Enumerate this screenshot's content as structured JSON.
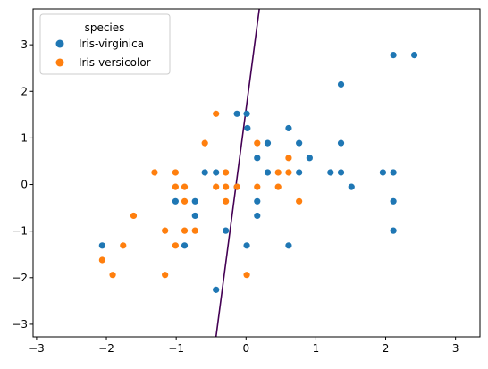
{
  "chart_data": {
    "type": "scatter",
    "legend": {
      "title": "species",
      "placement": "top-left",
      "entries": [
        {
          "name": "Iris-virginica",
          "color": "#1f77b4"
        },
        {
          "name": "Iris-versicolor",
          "color": "#ff7f0e"
        }
      ]
    },
    "xlim": [
      -3.05,
      3.35
    ],
    "ylim": [
      -3.27,
      3.77
    ],
    "x_ticks": [
      -3,
      -2,
      -1,
      0,
      1,
      2,
      3
    ],
    "y_ticks": [
      -3,
      -2,
      -1,
      0,
      1,
      2,
      3
    ],
    "grid": false,
    "series": [
      {
        "name": "Iris-virginica",
        "color": "#1f77b4",
        "points": [
          [
            -2.06,
            -1.31
          ],
          [
            -0.88,
            -1.31
          ],
          [
            -0.73,
            -0.67
          ],
          [
            -0.73,
            -0.36
          ],
          [
            -1.01,
            -0.36
          ],
          [
            -0.59,
            0.26
          ],
          [
            -0.43,
            0.26
          ],
          [
            -0.13,
            1.52
          ],
          [
            0.01,
            1.52
          ],
          [
            0.02,
            1.21
          ],
          [
            0.31,
            0.89
          ],
          [
            0.61,
            1.21
          ],
          [
            0.76,
            0.89
          ],
          [
            0.16,
            0.57
          ],
          [
            0.31,
            0.26
          ],
          [
            0.76,
            0.26
          ],
          [
            0.91,
            0.57
          ],
          [
            1.21,
            0.26
          ],
          [
            1.36,
            0.26
          ],
          [
            1.36,
            0.89
          ],
          [
            1.36,
            2.15
          ],
          [
            1.51,
            -0.05
          ],
          [
            1.96,
            0.26
          ],
          [
            2.11,
            0.26
          ],
          [
            2.11,
            -0.36
          ],
          [
            2.11,
            -0.99
          ],
          [
            2.11,
            2.78
          ],
          [
            2.41,
            2.78
          ],
          [
            0.61,
            -1.31
          ],
          [
            0.01,
            -1.31
          ],
          [
            -0.29,
            -0.99
          ],
          [
            -0.43,
            -2.26
          ],
          [
            0.16,
            -0.36
          ],
          [
            0.16,
            -0.67
          ],
          [
            -0.13,
            -0.05
          ]
        ]
      },
      {
        "name": "Iris-versicolor",
        "color": "#ff7f0e",
        "points": [
          [
            -2.06,
            -1.62
          ],
          [
            -1.91,
            -1.94
          ],
          [
            -1.76,
            -1.31
          ],
          [
            -1.61,
            -0.67
          ],
          [
            -1.31,
            0.26
          ],
          [
            -1.16,
            -0.99
          ],
          [
            -1.16,
            -1.94
          ],
          [
            -1.01,
            0.26
          ],
          [
            -1.01,
            -0.05
          ],
          [
            -1.01,
            -1.31
          ],
          [
            -0.88,
            -0.05
          ],
          [
            -0.88,
            -0.36
          ],
          [
            -0.88,
            -0.99
          ],
          [
            -0.73,
            -0.99
          ],
          [
            -0.59,
            0.89
          ],
          [
            -0.43,
            1.52
          ],
          [
            -0.43,
            -0.05
          ],
          [
            -0.29,
            0.26
          ],
          [
            -0.29,
            -0.05
          ],
          [
            -0.29,
            -0.36
          ],
          [
            -0.13,
            -0.05
          ],
          [
            0.01,
            -1.94
          ],
          [
            0.16,
            0.89
          ],
          [
            0.16,
            -0.05
          ],
          [
            0.46,
            0.26
          ],
          [
            0.46,
            -0.05
          ],
          [
            0.61,
            0.57
          ],
          [
            0.61,
            0.26
          ],
          [
            0.76,
            -0.36
          ]
        ]
      }
    ],
    "decision_boundary": {
      "color": "#440154",
      "points": [
        [
          0.19,
          3.77
        ],
        [
          -0.43,
          -3.27
        ]
      ]
    }
  }
}
